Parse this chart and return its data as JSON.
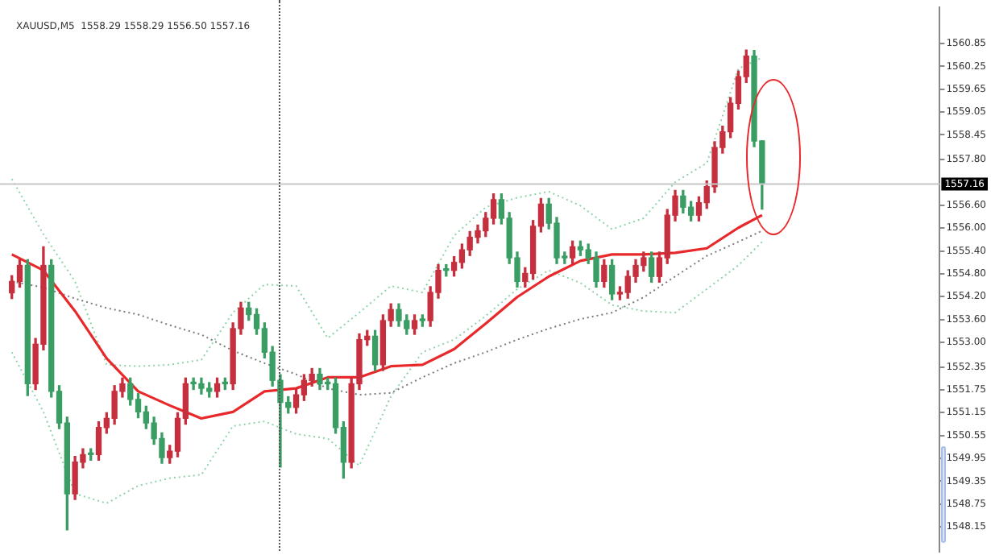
{
  "chart_data": {
    "type": "candlestick",
    "title": "XAUUSD,M5  1558.29 1558.29 1556.50 1557.16",
    "tick_labels": "y",
    "categories": [
      null,
      null,
      null,
      null,
      null,
      null,
      null,
      null,
      null,
      null,
      null,
      null,
      null,
      null,
      null,
      null,
      null,
      null,
      null,
      null,
      null,
      null,
      null,
      null,
      null,
      null,
      null,
      null,
      null,
      null,
      null,
      null,
      null,
      null,
      null,
      null,
      null,
      null,
      null,
      null,
      null,
      null,
      null,
      null,
      null,
      null,
      null,
      null,
      null,
      null,
      null,
      null,
      null,
      null,
      null,
      null,
      null,
      null,
      null,
      null,
      null,
      null,
      null,
      null,
      null,
      null,
      null,
      null,
      null,
      null,
      null,
      null,
      null,
      null,
      null,
      null,
      null,
      null,
      null,
      null,
      null,
      null,
      null,
      null,
      null,
      null,
      null,
      null,
      null,
      null,
      null,
      null,
      null,
      null,
      null,
      null,
      null,
      null,
      null,
      null,
      null,
      null,
      null,
      null,
      null,
      null,
      null,
      null,
      null,
      null,
      null,
      null,
      null,
      null,
      null,
      null,
      null,
      null,
      null
    ],
    "ohlc": [
      null,
      [
        1554.3,
        1554.75,
        1554.15,
        1554.6
      ],
      [
        1554.6,
        1555.17,
        1554.45,
        1555.02
      ],
      [
        1555.02,
        1555.17,
        1551.6,
        1551.91
      ],
      [
        1551.91,
        1553.1,
        1551.76,
        1552.95
      ],
      [
        1552.95,
        1555.51,
        1552.8,
        1555.02
      ],
      [
        1555.02,
        1555.17,
        1551.56,
        1551.71
      ],
      [
        1551.71,
        1551.86,
        1550.73,
        1550.88
      ],
      [
        1550.88,
        1551.03,
        1548.07,
        1549.02
      ],
      [
        1549.02,
        1550.0,
        1548.87,
        1549.85
      ],
      [
        1549.85,
        1550.2,
        1549.7,
        1550.05
      ],
      [
        1550.05,
        1550.2,
        1549.9,
        1550.05
      ],
      [
        1550.05,
        1550.91,
        1549.9,
        1550.76
      ],
      [
        1550.76,
        1551.15,
        1550.61,
        1551.0
      ],
      [
        1551.0,
        1551.86,
        1550.85,
        1551.71
      ],
      [
        1551.71,
        1552.06,
        1551.56,
        1551.91
      ],
      [
        1551.91,
        1552.06,
        1551.35,
        1551.5
      ],
      [
        1551.5,
        1551.65,
        1551.02,
        1551.17
      ],
      [
        1551.17,
        1551.32,
        1550.73,
        1550.88
      ],
      [
        1550.88,
        1551.03,
        1550.32,
        1550.47
      ],
      [
        1550.47,
        1550.62,
        1549.82,
        1549.97
      ],
      [
        1549.97,
        1550.29,
        1549.82,
        1550.14
      ],
      [
        1550.14,
        1551.15,
        1549.99,
        1551.0
      ],
      [
        1551.0,
        1552.06,
        1550.85,
        1551.91
      ],
      [
        1551.91,
        1552.06,
        1551.76,
        1551.91
      ],
      [
        1551.91,
        1552.06,
        1551.64,
        1551.79
      ],
      [
        1551.79,
        1551.94,
        1551.56,
        1551.71
      ],
      [
        1551.71,
        1552.06,
        1551.56,
        1551.91
      ],
      [
        1551.91,
        1552.06,
        1551.76,
        1551.91
      ],
      [
        1551.91,
        1553.51,
        1551.76,
        1553.36
      ],
      [
        1553.36,
        1554.05,
        1553.21,
        1553.9
      ],
      [
        1553.9,
        1554.05,
        1553.58,
        1553.73
      ],
      [
        1553.73,
        1553.88,
        1553.21,
        1553.36
      ],
      [
        1553.36,
        1553.51,
        1552.59,
        1552.74
      ],
      [
        1552.74,
        1552.89,
        1551.85,
        1552.0
      ],
      [
        1552.0,
        1552.15,
        1549.72,
        1551.42
      ],
      [
        1551.42,
        1551.57,
        1551.14,
        1551.29
      ],
      [
        1551.29,
        1551.77,
        1551.14,
        1551.62
      ],
      [
        1551.62,
        1552.15,
        1551.47,
        1552.0
      ],
      [
        1552.0,
        1552.31,
        1551.85,
        1552.16
      ],
      [
        1552.16,
        1552.31,
        1551.76,
        1551.91
      ],
      [
        1551.91,
        1552.06,
        1551.76,
        1551.91
      ],
      [
        1551.91,
        1552.06,
        1550.61,
        1550.76
      ],
      [
        1550.76,
        1550.91,
        1549.43,
        1549.85
      ],
      [
        1549.85,
        1552.06,
        1549.7,
        1551.91
      ],
      [
        1551.91,
        1553.22,
        1551.76,
        1553.07
      ],
      [
        1553.07,
        1553.31,
        1552.92,
        1553.16
      ],
      [
        1553.16,
        1553.31,
        1552.26,
        1552.41
      ],
      [
        1552.41,
        1553.72,
        1552.26,
        1553.57
      ],
      [
        1553.57,
        1554.01,
        1553.42,
        1553.86
      ],
      [
        1553.86,
        1554.01,
        1553.42,
        1553.57
      ],
      [
        1553.57,
        1553.72,
        1553.21,
        1553.36
      ],
      [
        1553.36,
        1553.72,
        1553.21,
        1553.57
      ],
      [
        1553.57,
        1553.72,
        1553.42,
        1553.57
      ],
      [
        1553.57,
        1554.46,
        1553.42,
        1554.31
      ],
      [
        1554.31,
        1555.04,
        1554.16,
        1554.89
      ],
      [
        1554.89,
        1555.04,
        1554.74,
        1554.89
      ],
      [
        1554.89,
        1555.25,
        1554.74,
        1555.1
      ],
      [
        1555.1,
        1555.58,
        1554.95,
        1555.43
      ],
      [
        1555.43,
        1555.91,
        1555.28,
        1555.76
      ],
      [
        1555.76,
        1556.08,
        1555.61,
        1555.93
      ],
      [
        1555.93,
        1556.41,
        1555.78,
        1556.26
      ],
      [
        1556.26,
        1556.9,
        1556.11,
        1556.75
      ],
      [
        1556.75,
        1556.9,
        1556.11,
        1556.26
      ],
      [
        1556.26,
        1556.41,
        1555.07,
        1555.22
      ],
      [
        1555.22,
        1555.37,
        1554.45,
        1554.6
      ],
      [
        1554.6,
        1554.96,
        1554.45,
        1554.81
      ],
      [
        1554.81,
        1556.2,
        1554.66,
        1556.05
      ],
      [
        1556.05,
        1556.78,
        1555.9,
        1556.63
      ],
      [
        1556.63,
        1556.78,
        1555.98,
        1556.13
      ],
      [
        1556.13,
        1556.28,
        1555.07,
        1555.22
      ],
      [
        1555.22,
        1555.37,
        1555.07,
        1555.22
      ],
      [
        1555.22,
        1555.66,
        1555.07,
        1555.51
      ],
      [
        1555.51,
        1555.66,
        1555.28,
        1555.43
      ],
      [
        1555.43,
        1555.58,
        1555.07,
        1555.22
      ],
      [
        1555.22,
        1555.37,
        1554.45,
        1554.6
      ],
      [
        1554.6,
        1555.17,
        1554.45,
        1555.02
      ],
      [
        1555.02,
        1555.17,
        1554.12,
        1554.27
      ],
      [
        1554.27,
        1554.46,
        1554.12,
        1554.31
      ],
      [
        1554.31,
        1554.88,
        1554.16,
        1554.73
      ],
      [
        1554.73,
        1555.17,
        1554.58,
        1555.02
      ],
      [
        1555.02,
        1555.37,
        1554.87,
        1555.22
      ],
      [
        1555.22,
        1555.37,
        1554.58,
        1554.73
      ],
      [
        1554.73,
        1555.37,
        1554.58,
        1555.22
      ],
      [
        1555.22,
        1556.49,
        1555.07,
        1556.34
      ],
      [
        1556.34,
        1556.99,
        1556.19,
        1556.84
      ],
      [
        1556.84,
        1556.99,
        1556.4,
        1556.55
      ],
      [
        1556.55,
        1556.7,
        1556.19,
        1556.34
      ],
      [
        1556.34,
        1556.82,
        1556.19,
        1556.67
      ],
      [
        1556.67,
        1557.24,
        1556.52,
        1557.09
      ],
      [
        1557.09,
        1558.27,
        1556.94,
        1558.12
      ],
      [
        1558.12,
        1558.68,
        1557.97,
        1558.53
      ],
      [
        1558.53,
        1559.43,
        1558.38,
        1559.28
      ],
      [
        1559.28,
        1560.13,
        1559.13,
        1559.98
      ],
      [
        1559.98,
        1560.68,
        1559.83,
        1560.52
      ],
      [
        1560.52,
        1560.67,
        1558.14,
        1558.29
      ],
      [
        1558.29,
        1558.29,
        1556.5,
        1557.16
      ],
      null,
      null,
      null,
      null,
      null,
      null,
      null,
      null,
      null,
      null,
      null,
      null,
      null,
      null,
      null,
      null,
      null,
      null,
      null,
      null,
      null,
      null
    ],
    "colors": [
      null,
      "#c62f3d",
      "#c62f3d",
      "#3a9d63",
      "#c62f3d",
      "#c62f3d",
      "#3a9d63",
      "#3a9d63",
      "#3a9d63",
      "#c62f3d",
      "#c62f3d",
      "#3a9d63",
      "#c62f3d",
      "#c62f3d",
      "#c62f3d",
      "#c62f3d",
      "#3a9d63",
      "#3a9d63",
      "#3a9d63",
      "#3a9d63",
      "#3a9d63",
      "#c62f3d",
      "#c62f3d",
      "#c62f3d",
      "#3a9d63",
      "#3a9d63",
      "#3a9d63",
      "#c62f3d",
      "#3a9d63",
      "#c62f3d",
      "#c62f3d",
      "#3a9d63",
      "#3a9d63",
      "#3a9d63",
      "#3a9d63",
      "#3a9d63",
      "#3a9d63",
      "#c62f3d",
      "#c62f3d",
      "#c62f3d",
      "#3a9d63",
      "#3a9d63",
      "#3a9d63",
      "#3a9d63",
      "#c62f3d",
      "#c62f3d",
      "#c62f3d",
      "#3a9d63",
      "#c62f3d",
      "#c62f3d",
      "#3a9d63",
      "#3a9d63",
      "#c62f3d",
      "#3a9d63",
      "#c62f3d",
      "#c62f3d",
      "#3a9d63",
      "#c62f3d",
      "#c62f3d",
      "#c62f3d",
      "#c62f3d",
      "#c62f3d",
      "#c62f3d",
      "#3a9d63",
      "#3a9d63",
      "#3a9d63",
      "#c62f3d",
      "#c62f3d",
      "#c62f3d",
      "#3a9d63",
      "#3a9d63",
      "#3a9d63",
      "#c62f3d",
      "#3a9d63",
      "#3a9d63",
      "#3a9d63",
      "#c62f3d",
      "#3a9d63",
      "#c62f3d",
      "#c62f3d",
      "#c62f3d",
      "#c62f3d",
      "#3a9d63",
      "#c62f3d",
      "#c62f3d",
      "#c62f3d",
      "#3a9d63",
      "#3a9d63",
      "#c62f3d",
      "#c62f3d",
      "#c62f3d",
      "#c62f3d",
      "#c62f3d",
      "#c62f3d",
      "#c62f3d",
      "#3a9d63",
      "#3a9d63",
      null,
      null,
      null,
      null,
      null,
      null,
      null,
      null,
      null,
      null,
      null,
      null,
      null,
      null,
      null,
      null,
      null,
      null,
      null,
      null,
      null,
      null
    ],
    "series": [
      {
        "type": "line",
        "color": "#e8282a",
        "line_style": "solid",
        "values": [
          null,
          1555.31,
          null,
          null,
          null,
          1554.89,
          null,
          null,
          null,
          1553.82,
          null,
          null,
          null,
          1552.58,
          null,
          null,
          null,
          1551.71,
          null,
          null,
          null,
          1551.34,
          null,
          null,
          null,
          1551.0,
          null,
          null,
          null,
          1551.17,
          null,
          null,
          null,
          1551.71,
          null,
          null,
          null,
          1551.79,
          null,
          null,
          null,
          1552.08,
          null,
          null,
          null,
          1552.08,
          null,
          null,
          null,
          1552.37,
          null,
          null,
          null,
          1552.41,
          null,
          null,
          null,
          1552.82,
          null,
          null,
          null,
          1553.49,
          null,
          null,
          null,
          1554.19,
          null,
          null,
          null,
          1554.73,
          null,
          null,
          null,
          1555.14,
          null,
          null,
          null,
          1555.31,
          null,
          null,
          null,
          1555.31,
          null,
          null,
          null,
          1555.35,
          null,
          null,
          null,
          1555.47,
          null,
          null,
          null,
          1556.01,
          null,
          null,
          1556.34,
          null,
          null,
          null,
          null,
          null,
          null,
          null,
          null,
          null,
          null,
          null,
          null,
          null,
          null,
          null,
          null,
          null,
          null,
          null,
          null,
          null,
          null
        ]
      },
      {
        "type": "line",
        "color": "#7a7a7a",
        "line_style": "dotted",
        "values": [
          null,
          1554.6,
          null,
          null,
          null,
          1554.44,
          null,
          null,
          null,
          1554.15,
          null,
          null,
          null,
          1553.9,
          null,
          null,
          null,
          1553.73,
          null,
          null,
          null,
          1553.45,
          null,
          null,
          null,
          1553.2,
          null,
          null,
          null,
          1552.78,
          null,
          null,
          null,
          1552.45,
          null,
          null,
          null,
          1552.16,
          null,
          null,
          null,
          1551.79,
          null,
          null,
          null,
          1551.62,
          null,
          null,
          null,
          1551.67,
          null,
          null,
          null,
          1552.08,
          null,
          null,
          null,
          1552.45,
          null,
          null,
          null,
          1552.74,
          null,
          null,
          null,
          1553.07,
          null,
          null,
          null,
          1553.36,
          null,
          null,
          null,
          1553.61,
          null,
          null,
          null,
          1553.78,
          null,
          null,
          null,
          1554.18,
          null,
          null,
          null,
          1554.73,
          null,
          null,
          null,
          1555.27,
          null,
          null,
          null,
          1555.64,
          null,
          null,
          1555.93,
          null,
          null,
          null,
          null,
          null,
          null,
          null,
          null,
          null,
          null,
          null,
          null,
          null,
          null,
          null,
          null,
          null,
          null,
          null,
          null,
          null,
          null
        ]
      },
      {
        "type": "line",
        "color": "#8fd4a8",
        "line_style": "dotted",
        "values": [
          null,
          1557.29,
          null,
          null,
          null,
          1555.84,
          null,
          null,
          null,
          1554.6,
          null,
          null,
          null,
          1552.41,
          null,
          null,
          null,
          1552.37,
          null,
          null,
          null,
          1552.41,
          null,
          null,
          null,
          1552.54,
          null,
          null,
          null,
          1553.78,
          null,
          null,
          null,
          1554.52,
          null,
          null,
          null,
          1554.48,
          null,
          null,
          null,
          1553.11,
          null,
          null,
          null,
          1553.78,
          null,
          null,
          null,
          1554.48,
          null,
          null,
          null,
          1554.31,
          null,
          null,
          null,
          1555.8,
          null,
          null,
          null,
          1556.55,
          null,
          null,
          null,
          1556.8,
          null,
          null,
          null,
          1556.96,
          null,
          null,
          null,
          1556.59,
          null,
          null,
          null,
          1555.97,
          null,
          null,
          null,
          1556.26,
          null,
          null,
          null,
          1557.21,
          null,
          null,
          null,
          1557.71,
          null,
          null,
          null,
          1560.19,
          null,
          null,
          1560.48,
          null,
          null,
          null,
          null,
          null,
          null,
          null,
          null,
          null,
          null,
          null,
          null,
          null,
          null,
          null,
          null,
          null,
          null,
          null,
          null,
          null,
          null
        ]
      },
      {
        "type": "line",
        "color": "#8fd4a8",
        "line_style": "dotted",
        "values": [
          null,
          1552.74,
          null,
          null,
          null,
          1551.17,
          null,
          null,
          null,
          1549.02,
          null,
          null,
          null,
          1548.77,
          null,
          null,
          null,
          1549.23,
          null,
          null,
          null,
          1549.43,
          null,
          null,
          null,
          1549.52,
          null,
          null,
          null,
          1550.8,
          null,
          null,
          null,
          1550.92,
          null,
          null,
          null,
          1550.59,
          null,
          null,
          null,
          1550.47,
          null,
          null,
          null,
          1549.76,
          null,
          null,
          null,
          1551.58,
          null,
          null,
          null,
          1552.74,
          null,
          null,
          null,
          1553.07,
          null,
          null,
          null,
          1553.69,
          null,
          null,
          null,
          1554.4,
          null,
          null,
          null,
          1554.89,
          null,
          null,
          null,
          1554.56,
          null,
          null,
          null,
          1553.98,
          null,
          null,
          null,
          1553.82,
          null,
          null,
          null,
          1553.78,
          null,
          null,
          null,
          1554.4,
          null,
          null,
          null,
          1555.02,
          null,
          null,
          1555.64,
          null,
          null,
          null,
          null,
          null,
          null,
          null,
          null,
          null,
          null,
          null,
          null,
          null,
          null,
          null,
          null,
          null,
          null,
          null,
          null,
          null,
          null
        ]
      }
    ],
    "ylim": [
      1547.5,
      1561.8
    ],
    "yticks": [
      1560.85,
      1560.25,
      1559.65,
      1559.05,
      1558.45,
      {
        "value": 1557.8,
        "label": "1557.80"
      },
      {
        "value": 1556.6,
        "label": "1556.60"
      },
      {
        "value": 1556,
        "label": "1556.00"
      },
      {
        "value": 1555.4,
        "label": "1555.40"
      },
      {
        "value": 1554.8,
        "label": "1554.80"
      },
      {
        "value": 1554.2,
        "label": "1554.20"
      },
      {
        "value": 1553.6,
        "label": "1553.60"
      },
      {
        "value": 1553,
        "label": "1553.00"
      },
      1552.35,
      1551.75,
      1551.15,
      1550.55,
      1549.95,
      1549.35,
      1548.75,
      1548.15
    ],
    "ref_lines": [
      {
        "axis": "y",
        "value": 1557.16,
        "label": "1557.16",
        "color": "#c8c8c8"
      }
    ]
  }
}
